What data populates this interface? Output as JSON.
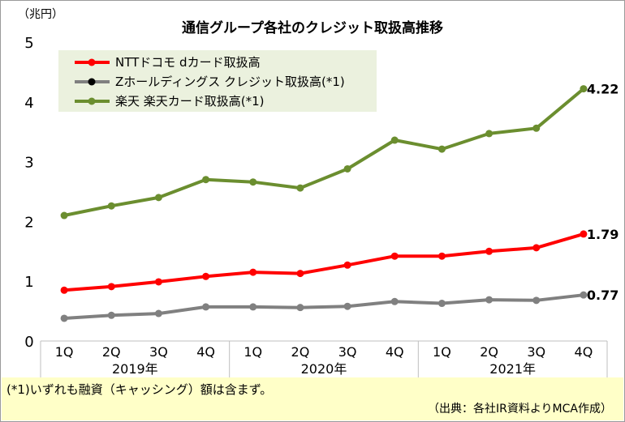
{
  "chart_data": {
    "type": "line",
    "title": "通信グループ各社のクレジット取扱高推移",
    "ylabel": "（兆円）",
    "ylim": [
      0,
      5
    ],
    "yticks": [
      "0",
      "1",
      "2",
      "3",
      "4",
      "5"
    ],
    "categories": [
      "1Q",
      "2Q",
      "3Q",
      "4Q",
      "1Q",
      "2Q",
      "3Q",
      "4Q",
      "1Q",
      "2Q",
      "3Q",
      "4Q"
    ],
    "years": [
      "2019年",
      "2020年",
      "2021年"
    ],
    "series": [
      {
        "name": "NTTドコモ dカード取扱高",
        "color": "#ff0000",
        "values": [
          0.85,
          0.91,
          0.99,
          1.08,
          1.15,
          1.13,
          1.27,
          1.42,
          1.42,
          1.5,
          1.56,
          1.79
        ],
        "end_label": "1.79"
      },
      {
        "name": "Zホールディングス クレジット取扱高(*1)",
        "color": "#808080",
        "values": [
          0.38,
          0.43,
          0.46,
          0.57,
          0.57,
          0.56,
          0.58,
          0.66,
          0.63,
          0.69,
          0.68,
          0.77
        ],
        "end_label": "0.77"
      },
      {
        "name": "楽天 楽天カード取扱高(*1)",
        "color": "#6b8e2f",
        "values": [
          2.1,
          2.26,
          2.4,
          2.7,
          2.66,
          2.56,
          2.88,
          3.36,
          3.21,
          3.47,
          3.56,
          4.22
        ],
        "end_label": "4.22"
      }
    ],
    "legend_position": "top-left",
    "grid": false
  },
  "note": "(*1)いずれも融資（キャッシング）額は含まず。",
  "source": "（出典：各社IR資料よりMCA作成）"
}
